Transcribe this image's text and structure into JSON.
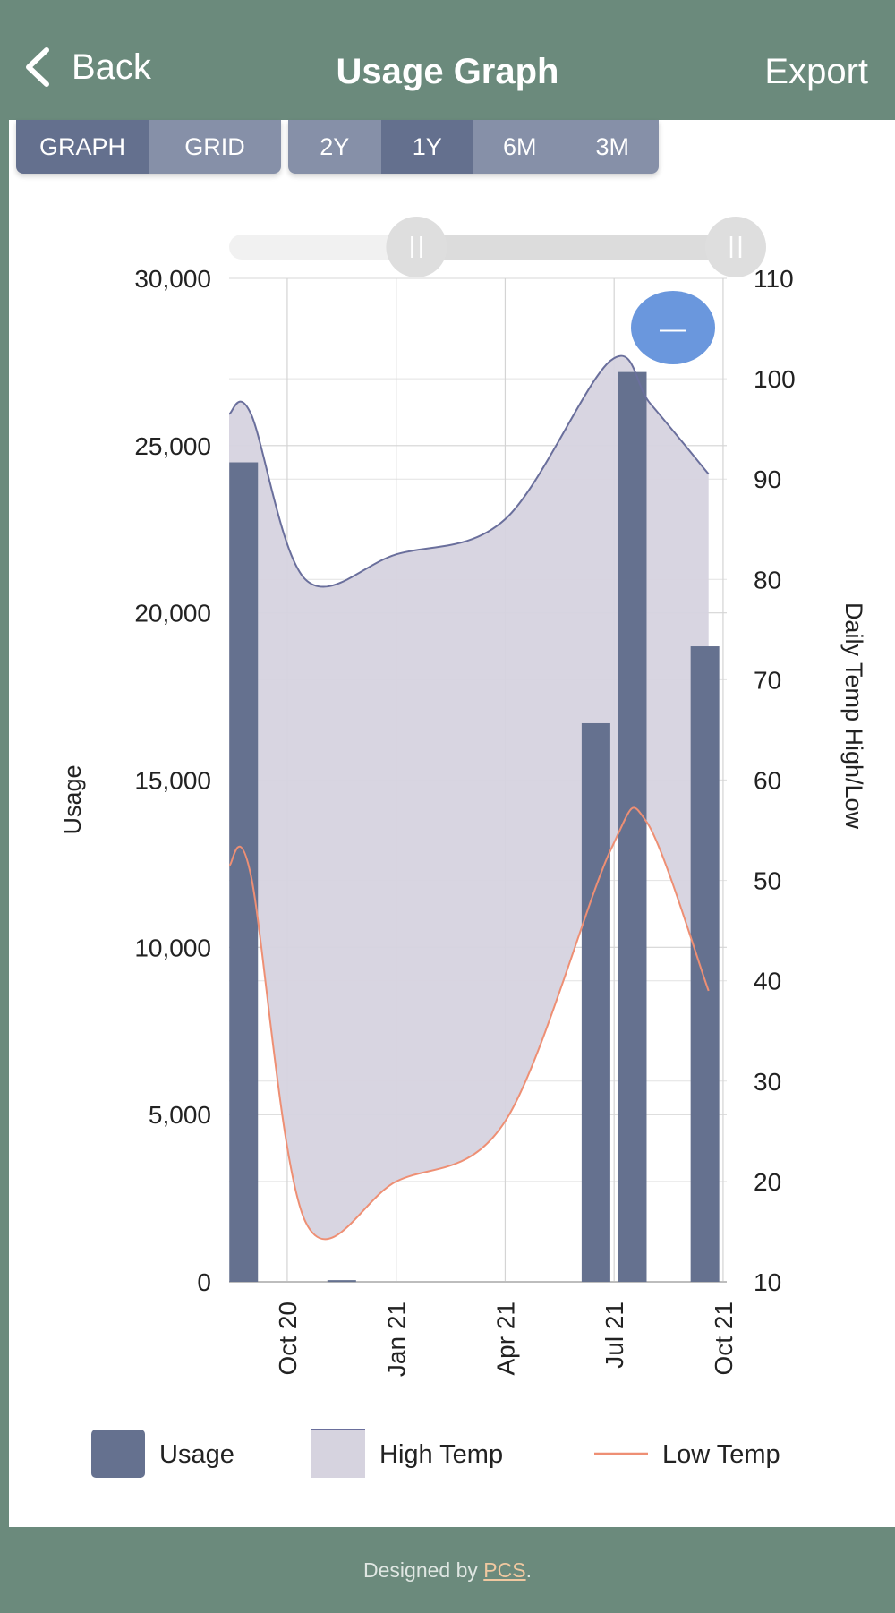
{
  "header": {
    "back_label": "Back",
    "title": "Usage Graph",
    "export_label": "Export"
  },
  "view_toggle": [
    {
      "label": "GRAPH",
      "active": true
    },
    {
      "label": "GRID",
      "active": false
    }
  ],
  "range_toggle": [
    {
      "label": "2Y",
      "active": false
    },
    {
      "label": "1Y",
      "active": true
    },
    {
      "label": "6M",
      "active": false
    },
    {
      "label": "3M",
      "active": false
    }
  ],
  "chart_data": {
    "type": "bar",
    "ylabel": "Usage",
    "y2label": "Daily Temp High/Low",
    "ylim": [
      0,
      30000
    ],
    "y2lim": [
      10,
      110
    ],
    "y_ticks": [
      "30,000",
      "25,000",
      "20,000",
      "15,000",
      "10,000",
      "5,000",
      "0"
    ],
    "y2_ticks": [
      "110",
      "100",
      "90",
      "80",
      "70",
      "60",
      "50",
      "40",
      "30",
      "20",
      "10"
    ],
    "x_ticks": [
      "Oct 20",
      "Jan 21",
      "Apr 21",
      "Jul 21",
      "Oct 21"
    ],
    "x_tick_months": [
      1,
      4,
      7,
      10,
      13
    ],
    "xlim_months": [
      -0.6,
      13.1
    ],
    "series": [
      {
        "name": "Usage",
        "kind": "bar",
        "color": "#65718f",
        "points": [
          {
            "m": -0.2,
            "v": 24500
          },
          {
            "m": 2.5,
            "v": 50
          },
          {
            "m": 9.5,
            "v": 16700
          },
          {
            "m": 10.5,
            "v": 27200
          },
          {
            "m": 12.5,
            "v": 19000
          }
        ]
      },
      {
        "name": "High Temp",
        "kind": "area",
        "color": "#6a6f9c",
        "fill": "#d6d3df",
        "points": [
          {
            "m": -0.6,
            "v": 96.5
          },
          {
            "m": 0.0,
            "v": 96.5
          },
          {
            "m": 1.5,
            "v": 80.0
          },
          {
            "m": 4.0,
            "v": 82.5
          },
          {
            "m": 7.0,
            "v": 86.0
          },
          {
            "m": 9.9,
            "v": 101.8
          },
          {
            "m": 11.0,
            "v": 97.5
          },
          {
            "m": 12.6,
            "v": 90.5
          }
        ]
      },
      {
        "name": "Low Temp",
        "kind": "line",
        "color": "#ee8f74",
        "points": [
          {
            "m": -0.6,
            "v": 51.5
          },
          {
            "m": 0.0,
            "v": 50.5
          },
          {
            "m": 1.5,
            "v": 16.0
          },
          {
            "m": 4.0,
            "v": 20.0
          },
          {
            "m": 7.0,
            "v": 26.0
          },
          {
            "m": 9.9,
            "v": 53.0
          },
          {
            "m": 10.9,
            "v": 55.8
          },
          {
            "m": 12.6,
            "v": 39.0
          }
        ]
      }
    ],
    "legend": [
      {
        "label": "Usage",
        "kind": "bar"
      },
      {
        "label": "High Temp",
        "kind": "area"
      },
      {
        "label": "Low Temp",
        "kind": "line"
      }
    ],
    "range_slider": {
      "start_fraction": 0.37,
      "end_fraction": 1.0
    },
    "zoom_button": {
      "symbol": "—"
    }
  },
  "footer": {
    "prefix": "Designed by ",
    "link": "PCS",
    "suffix": "."
  }
}
